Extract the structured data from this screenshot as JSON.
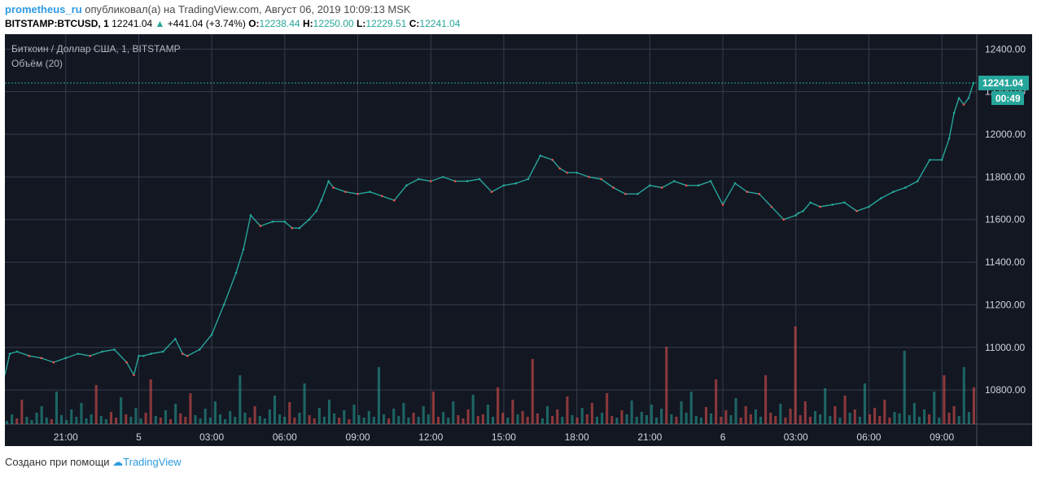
{
  "header": {
    "author": "prometheus_ru",
    "published_text": "опубликовал(а) на TradingView.com, Август 06, 2019 10:09:13 MSK",
    "symbol": "BITSTAMP:BTCUSD, 1",
    "last": "12241.04",
    "change": "+441.04 (+3.74%)",
    "o_label": "O:",
    "o_value": "12238.44",
    "h_label": "H:",
    "h_value": "12250.00",
    "l_label": "L:",
    "l_value": "12229.51",
    "c_label": "C:",
    "c_value": "12241.04"
  },
  "footer": {
    "created_text": "Создано при помощи",
    "brand": "TradingView"
  },
  "colors": {
    "background": "#131722",
    "grid": "#363c4e",
    "up": "#26a69a",
    "down": "#ef5350",
    "price_tag": "#26a69a"
  },
  "chart_data": {
    "type": "line",
    "title": "Биткоин / Доллар США, 1, BITSTAMP",
    "volume_label": "Объём (20)",
    "ylim": [
      10640,
      12470
    ],
    "y_ticks": [
      12400,
      12200,
      12000,
      11800,
      11600,
      11400,
      11200,
      11000,
      10800
    ],
    "y_tick_labels": [
      "12400.00",
      "12200.00",
      "12000.00",
      "11800.00",
      "11600.00",
      "11400.00",
      "11200.00",
      "11000.00",
      "10800.00"
    ],
    "x_tick_labels": [
      "21:00",
      "5",
      "03:00",
      "06:00",
      "09:00",
      "12:00",
      "15:00",
      "18:00",
      "21:00",
      "6",
      "03:00",
      "06:00",
      "09:00"
    ],
    "x_tick_hours": [
      0,
      3,
      6,
      9,
      12,
      15,
      18,
      21,
      24,
      27,
      30,
      33,
      36
    ],
    "x_range_hours": [
      -2.5,
      37.3
    ],
    "series": [
      {
        "x": [
          -2.5,
          -2.3,
          -2,
          -1.5,
          -1,
          -0.5,
          0,
          0.5,
          1,
          1.5,
          2,
          2.5,
          2.8,
          3,
          3.2,
          3.5,
          4,
          4.5,
          4.8,
          5,
          5.5,
          6,
          6.5,
          7,
          7.3,
          7.6,
          8,
          8.5,
          9,
          9.3,
          9.6,
          10,
          10.3,
          10.5,
          10.8,
          11,
          11.5,
          12,
          12.5,
          13,
          13.5,
          14,
          14.5,
          15,
          15.5,
          16,
          16.5,
          17,
          17.5,
          18,
          18.5,
          19,
          19.5,
          20,
          20.3,
          20.6,
          21,
          21.5,
          22,
          22.5,
          23,
          23.5,
          24,
          24.5,
          25,
          25.5,
          26,
          26.5,
          27,
          27.5,
          28,
          28.5,
          29,
          29.5,
          30,
          30.1,
          30.3,
          30.6,
          31,
          31.5,
          32,
          32.5,
          33,
          33.5,
          34,
          34.5,
          35,
          35.5,
          36,
          36.3,
          36.5,
          36.7,
          36.9,
          37.1,
          37.3
        ],
        "values": [
          10870,
          10970,
          10980,
          10960,
          10950,
          10930,
          10950,
          10970,
          10960,
          10980,
          10990,
          10930,
          10870,
          10960,
          10960,
          10970,
          10980,
          11040,
          10970,
          10960,
          10990,
          11060,
          11200,
          11350,
          11460,
          11620,
          11570,
          11590,
          11590,
          11560,
          11560,
          11600,
          11640,
          11690,
          11780,
          11750,
          11730,
          11720,
          11730,
          11710,
          11690,
          11760,
          11790,
          11780,
          11800,
          11780,
          11780,
          11790,
          11730,
          11760,
          11770,
          11790,
          11900,
          11880,
          11840,
          11820,
          11820,
          11800,
          11790,
          11750,
          11720,
          11720,
          11760,
          11750,
          11780,
          11760,
          11760,
          11780,
          11670,
          11770,
          11730,
          11720,
          11660,
          11600,
          11620,
          11630,
          11640,
          11680,
          11660,
          11670,
          11680,
          11640,
          11660,
          11700,
          11730,
          11750,
          11780,
          11880,
          11880,
          11980,
          12100,
          12170,
          12140,
          12170,
          12241
        ]
      }
    ],
    "last_price_label": "12241.04",
    "countdown_label": "00:49",
    "volume": [
      4,
      12,
      7,
      30,
      9,
      5,
      14,
      22,
      8,
      6,
      40,
      11,
      5,
      18,
      9,
      26,
      7,
      12,
      48,
      10,
      6,
      15,
      8,
      33,
      12,
      9,
      20,
      7,
      14,
      55,
      10,
      8,
      17,
      6,
      25,
      13,
      9,
      38,
      11,
      7,
      19,
      8,
      28,
      12,
      6,
      16,
      9,
      60,
      14,
      8,
      22,
      10,
      7,
      18,
      35,
      12,
      9,
      27,
      8,
      14,
      50,
      11,
      7,
      20,
      9,
      30,
      13,
      8,
      17,
      6,
      24,
      11,
      8,
      16,
      9,
      70,
      12,
      7,
      19,
      10,
      26,
      8,
      14,
      9,
      22,
      12,
      40,
      9,
      15,
      8,
      28,
      11,
      7,
      18,
      36,
      10,
      12,
      24,
      9,
      45,
      14,
      8,
      30,
      12,
      16,
      9,
      80,
      13,
      7,
      22,
      10,
      18,
      9,
      34,
      11,
      8,
      20,
      12,
      26,
      9,
      14,
      38,
      10,
      8,
      17,
      12,
      29,
      9,
      15,
      11,
      24,
      8,
      19,
      95,
      12,
      9,
      28,
      14,
      40,
      10,
      8,
      21,
      13,
      55,
      9,
      17,
      11,
      32,
      8,
      22,
      12,
      18,
      9,
      60,
      14,
      10,
      25,
      8,
      19,
      120,
      11,
      28,
      9,
      16,
      12,
      44,
      10,
      22,
      8,
      35,
      14,
      18,
      9,
      50,
      12,
      20,
      10,
      30,
      8,
      15,
      13,
      90,
      11,
      26,
      9,
      18,
      12,
      40,
      8,
      60,
      14,
      22,
      10,
      70,
      15,
      45
    ]
  }
}
